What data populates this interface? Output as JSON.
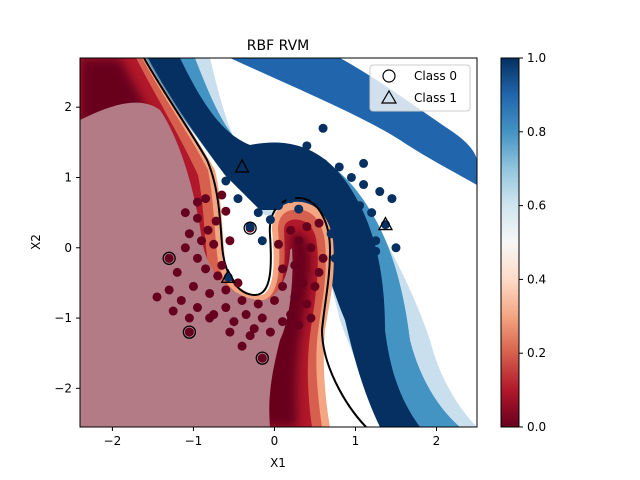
{
  "chart_data": {
    "type": "scatter",
    "title": "RBF RVM",
    "xlabel": "X1",
    "ylabel": "X2",
    "xlim": [
      -2.4,
      2.5
    ],
    "ylim": [
      -2.55,
      2.7
    ],
    "xticks": [
      -2,
      -1,
      0,
      1,
      2
    ],
    "yticks": [
      -2,
      -1,
      0,
      1,
      2
    ],
    "grid": false,
    "legend": {
      "placement": "top-right",
      "entries": [
        {
          "label": "Class 0",
          "marker": "circle"
        },
        {
          "label": "Class 1",
          "marker": "triangle"
        }
      ]
    },
    "colorbar": {
      "colormap": "RdBu",
      "range": [
        0.0,
        1.0
      ],
      "ticks": [
        "0.0",
        "0.2",
        "0.4",
        "0.6",
        "0.8",
        "1.0"
      ],
      "low_color": "#67001f",
      "mid_color": "#f7f7f7",
      "high_color": "#053061"
    },
    "relevance_vectors": {
      "class_0": [
        [
          -1.3,
          -0.15
        ],
        [
          -1.05,
          -1.2
        ],
        [
          -0.15,
          -1.57
        ],
        [
          -0.3,
          0.28
        ]
      ],
      "class_1": [
        [
          -0.4,
          1.15
        ],
        [
          1.37,
          0.33
        ],
        [
          -0.57,
          -0.42
        ]
      ]
    },
    "decision_boundary_level": 0.5,
    "series": [
      {
        "class": 0,
        "color": "#67001f",
        "points": [
          [
            -1.3,
            -0.15
          ],
          [
            -1.05,
            -1.2
          ],
          [
            -0.15,
            -1.57
          ],
          [
            -0.3,
            0.28
          ],
          [
            -0.72,
            0.38
          ],
          [
            -0.82,
            0.25
          ],
          [
            -0.95,
            0.42
          ],
          [
            -0.6,
            0.52
          ],
          [
            -0.55,
            0.1
          ],
          [
            -0.75,
            0.05
          ],
          [
            -0.9,
            0.1
          ],
          [
            -1.05,
            0.2
          ],
          [
            -1.1,
            0.0
          ],
          [
            -0.95,
            -0.15
          ],
          [
            -1.2,
            -0.35
          ],
          [
            -0.85,
            -0.3
          ],
          [
            -0.7,
            -0.4
          ],
          [
            -0.6,
            -0.6
          ],
          [
            -0.8,
            -0.65
          ],
          [
            -1.0,
            -0.55
          ],
          [
            -1.15,
            -0.75
          ],
          [
            -1.3,
            -0.6
          ],
          [
            -1.45,
            -0.7
          ],
          [
            -1.25,
            -0.9
          ],
          [
            -0.95,
            -0.85
          ],
          [
            -0.75,
            -0.95
          ],
          [
            -0.6,
            -0.85
          ],
          [
            -0.5,
            -1.05
          ],
          [
            -0.35,
            -0.95
          ],
          [
            -0.25,
            -1.15
          ],
          [
            -0.15,
            -1.0
          ],
          [
            -0.05,
            -1.2
          ],
          [
            0.1,
            -1.05
          ],
          [
            0.2,
            -0.95
          ],
          [
            0.3,
            -1.1
          ],
          [
            0.45,
            -1.0
          ],
          [
            0.4,
            -0.8
          ],
          [
            0.25,
            -0.7
          ],
          [
            0.1,
            -0.55
          ],
          [
            0.0,
            -0.75
          ],
          [
            -0.2,
            -0.8
          ],
          [
            -0.4,
            -0.75
          ],
          [
            0.35,
            -0.5
          ],
          [
            0.5,
            -0.55
          ],
          [
            0.55,
            -0.35
          ],
          [
            0.6,
            -0.15
          ],
          [
            0.45,
            0.0
          ],
          [
            0.3,
            0.1
          ],
          [
            0.2,
            0.25
          ],
          [
            0.4,
            0.3
          ],
          [
            0.55,
            0.35
          ],
          [
            0.05,
            0.05
          ],
          [
            0.1,
            -0.3
          ],
          [
            0.25,
            -0.25
          ],
          [
            -0.85,
            0.7
          ],
          [
            -0.65,
            0.75
          ],
          [
            -0.95,
            0.65
          ],
          [
            -1.1,
            0.5
          ],
          [
            -0.4,
            -1.4
          ],
          [
            -0.3,
            -1.25
          ],
          [
            -0.55,
            -1.2
          ],
          [
            -0.8,
            -1.0
          ],
          [
            -1.05,
            -1.0
          ],
          [
            -0.65,
            -0.25
          ],
          [
            -0.45,
            -0.5
          ]
        ]
      },
      {
        "class": 1,
        "color": "#053061",
        "points": [
          [
            -0.4,
            1.15
          ],
          [
            1.37,
            0.33
          ],
          [
            -0.57,
            -0.42
          ],
          [
            -0.6,
            0.95
          ],
          [
            -0.35,
            1.0
          ],
          [
            -0.2,
            1.2
          ],
          [
            0.0,
            1.3
          ],
          [
            0.15,
            1.15
          ],
          [
            0.3,
            1.25
          ],
          [
            0.45,
            1.0
          ],
          [
            0.6,
            1.2
          ],
          [
            0.8,
            1.15
          ],
          [
            0.95,
            1.0
          ],
          [
            1.1,
            1.2
          ],
          [
            0.6,
            1.7
          ],
          [
            0.75,
            0.85
          ],
          [
            0.9,
            0.75
          ],
          [
            1.05,
            0.6
          ],
          [
            1.2,
            0.5
          ],
          [
            1.45,
            0.7
          ],
          [
            1.5,
            0.0
          ],
          [
            1.25,
            0.1
          ],
          [
            1.0,
            0.3
          ],
          [
            0.85,
            0.45
          ],
          [
            1.1,
            -0.15
          ],
          [
            0.95,
            -0.3
          ],
          [
            0.75,
            -0.15
          ],
          [
            0.9,
            0.1
          ],
          [
            0.7,
            0.2
          ],
          [
            0.65,
            0.55
          ],
          [
            0.5,
            0.7
          ],
          [
            0.35,
            0.85
          ],
          [
            0.2,
            0.7
          ],
          [
            0.05,
            0.9
          ],
          [
            -0.1,
            0.75
          ],
          [
            -0.25,
            0.8
          ],
          [
            -0.45,
            0.7
          ],
          [
            -0.2,
            0.5
          ],
          [
            -0.05,
            0.4
          ],
          [
            -0.3,
            0.3
          ],
          [
            -0.15,
            0.1
          ],
          [
            0.05,
            0.6
          ],
          [
            0.3,
            0.55
          ],
          [
            0.8,
            0.65
          ],
          [
            1.1,
            0.9
          ],
          [
            0.4,
            1.45
          ],
          [
            -0.05,
            1.1
          ],
          [
            0.7,
            1.0
          ],
          [
            1.3,
            0.8
          ],
          [
            1.25,
            -0.05
          ],
          [
            1.0,
            0.5
          ],
          [
            0.85,
            -0.05
          ]
        ]
      }
    ]
  }
}
